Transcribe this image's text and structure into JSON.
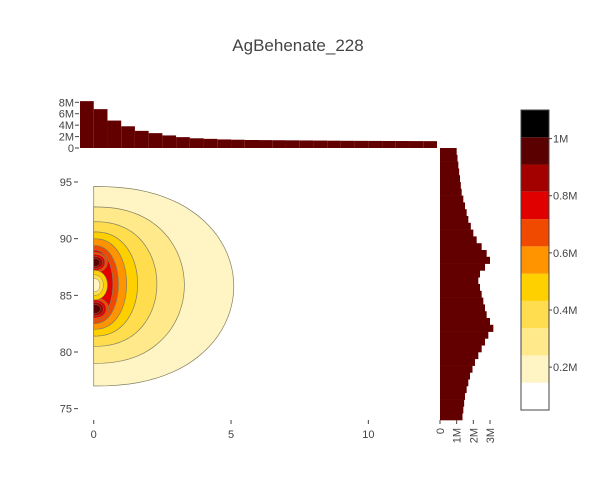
{
  "chart_data": {
    "type": "contour",
    "title": "AgBehenate_228",
    "main": {
      "xlim": [
        -0.5,
        12.5
      ],
      "ylim": [
        74,
        98
      ],
      "x_ticks": [
        0,
        5,
        10
      ],
      "y_ticks": [
        75,
        80,
        85,
        90,
        95
      ],
      "contour_levels": [
        {
          "max_x": 5.1,
          "y_lo": 77.0,
          "y_hi": 94.6,
          "y_center": 85.8
        },
        {
          "max_x": 3.3,
          "y_lo": 79.0,
          "y_hi": 92.8,
          "y_center": 85.9
        },
        {
          "max_x": 2.3,
          "y_lo": 80.5,
          "y_hi": 91.5,
          "y_center": 86.0
        },
        {
          "max_x": 1.6,
          "y_lo": 81.4,
          "y_hi": 90.6,
          "y_center": 86.0
        },
        {
          "max_x": 1.2,
          "y_lo": 82.0,
          "y_hi": 90.0,
          "y_center": 86.0
        },
        {
          "max_x": 0.9,
          "y_lo": 82.5,
          "y_hi": 89.4,
          "y_center": 86.0
        },
        {
          "max_x": 0.7,
          "y_lo": 83.0,
          "y_hi": 89.0,
          "y_center": 86.0
        }
      ],
      "hot_lobes": [
        {
          "y_center": 83.8,
          "half_height": 1.0,
          "max_x": 0.5
        },
        {
          "y_center": 87.9,
          "half_height": 0.9,
          "max_x": 0.45
        }
      ],
      "center_hole": {
        "y_center": 85.9,
        "half_height": 1.3,
        "max_x": 0.5
      }
    },
    "top_histogram": {
      "ylabel_ticks": [
        0,
        2000000,
        4000000,
        6000000,
        8000000
      ],
      "tick_labels": [
        "0",
        "2M",
        "4M",
        "6M",
        "8M"
      ],
      "ylim": [
        0,
        8400000
      ],
      "x_edges_start": -0.5,
      "bin_width": 0.5,
      "values": [
        8200000,
        6800000,
        4800000,
        3800000,
        3000000,
        2600000,
        2200000,
        1900000,
        1700000,
        1600000,
        1500000,
        1450000,
        1400000,
        1380000,
        1360000,
        1340000,
        1320000,
        1300000,
        1280000,
        1260000,
        1250000,
        1240000,
        1230000,
        1220000,
        1210000,
        1200000,
        1200000
      ]
    },
    "right_histogram": {
      "tick_labels": [
        "0",
        "1M",
        "2M",
        "3M"
      ],
      "x_ticks": [
        0,
        1000000,
        2000000,
        3000000
      ],
      "xlim": [
        0,
        3600000
      ],
      "y_edges_start": 74,
      "bin_width": 0.6,
      "values": [
        1350000,
        1400000,
        1450000,
        1500000,
        1600000,
        1700000,
        1800000,
        1950000,
        2100000,
        2300000,
        2500000,
        2700000,
        2900000,
        3200000,
        3000000,
        2800000,
        2700000,
        2600000,
        2500000,
        2400000,
        2300000,
        2400000,
        2700000,
        3000000,
        2800000,
        2500000,
        2200000,
        2000000,
        1850000,
        1700000,
        1600000,
        1500000,
        1400000,
        1300000,
        1250000,
        1200000,
        1150000,
        1100000,
        1050000,
        1000000
      ]
    },
    "colorbar": {
      "tick_labels": [
        "0.2M",
        "0.4M",
        "0.6M",
        "0.8M",
        "1M"
      ],
      "tick_values": [
        200000,
        400000,
        600000,
        800000,
        1000000
      ],
      "range": [
        50000,
        1100000
      ],
      "colors": [
        "#ffffff",
        "#fff4c3",
        "#ffe98a",
        "#ffdd4f",
        "#ffd000",
        "#ff9300",
        "#f04a00",
        "#e00000",
        "#a30000",
        "#5b0000",
        "#000000"
      ]
    },
    "histogram_color": "#620000",
    "contour_line_color": "#808060"
  }
}
